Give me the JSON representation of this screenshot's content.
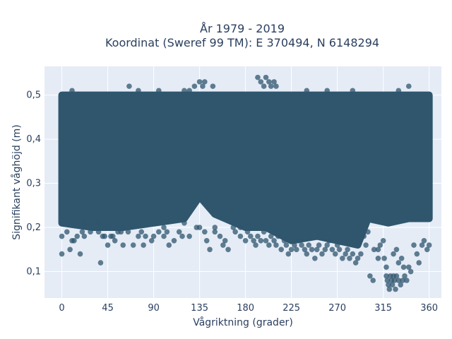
{
  "chart_data": {
    "type": "scatter",
    "title_line1": "År 1979 - 2019",
    "title_line2": "Koordinat (Sweref 99 TM): E 370494, N 6148294",
    "xlabel": "Vågriktning (grader)",
    "ylabel": "Signifikant våghöjd (m)",
    "xlim": [
      -17,
      372
    ],
    "ylim": [
      0.04,
      0.565
    ],
    "xticks": [
      0,
      45,
      90,
      135,
      180,
      225,
      270,
      315,
      360
    ],
    "xtick_labels": [
      "0",
      "45",
      "90",
      "135",
      "180",
      "225",
      "270",
      "315",
      "360"
    ],
    "yticks": [
      0.1,
      0.2,
      0.3,
      0.4,
      0.5
    ],
    "ytick_labels": [
      "0,1",
      "0,2",
      "0,3",
      "0,4",
      "0,5"
    ],
    "grid": true,
    "colors": {
      "marker": "#2f566d",
      "plot_bg": "#e5ecf6",
      "grid": "#ffffff",
      "text": "#2a3f5f"
    },
    "dense_band": {
      "x": [
        0,
        360
      ],
      "y": [
        0.22,
        0.5
      ],
      "note_lower_boundary_by_direction": [
        [
          0,
          0.21
        ],
        [
          30,
          0.2
        ],
        [
          60,
          0.2
        ],
        [
          120,
          0.22
        ],
        [
          135,
          0.27
        ],
        [
          150,
          0.23
        ],
        [
          180,
          0.2
        ],
        [
          200,
          0.2
        ],
        [
          225,
          0.17
        ],
        [
          250,
          0.18
        ],
        [
          270,
          0.17
        ],
        [
          290,
          0.16
        ],
        [
          300,
          0.22
        ],
        [
          320,
          0.21
        ],
        [
          340,
          0.22
        ],
        [
          360,
          0.22
        ]
      ]
    },
    "points": [
      [
        0,
        0.14
      ],
      [
        0,
        0.18
      ],
      [
        5,
        0.19
      ],
      [
        8,
        0.15
      ],
      [
        10,
        0.17
      ],
      [
        12,
        0.17
      ],
      [
        15,
        0.18
      ],
      [
        18,
        0.14
      ],
      [
        20,
        0.19
      ],
      [
        22,
        0.18
      ],
      [
        28,
        0.19
      ],
      [
        35,
        0.21
      ],
      [
        36,
        0.19
      ],
      [
        38,
        0.12
      ],
      [
        40,
        0.18
      ],
      [
        42,
        0.18
      ],
      [
        45,
        0.16
      ],
      [
        48,
        0.18
      ],
      [
        50,
        0.18
      ],
      [
        52,
        0.17
      ],
      [
        55,
        0.19
      ],
      [
        58,
        0.19
      ],
      [
        60,
        0.16
      ],
      [
        65,
        0.19
      ],
      [
        70,
        0.16
      ],
      [
        75,
        0.18
      ],
      [
        78,
        0.19
      ],
      [
        80,
        0.16
      ],
      [
        82,
        0.18
      ],
      [
        88,
        0.17
      ],
      [
        90,
        0.18
      ],
      [
        95,
        0.19
      ],
      [
        100,
        0.18
      ],
      [
        103,
        0.19
      ],
      [
        105,
        0.16
      ],
      [
        110,
        0.17
      ],
      [
        115,
        0.19
      ],
      [
        118,
        0.18
      ],
      [
        125,
        0.18
      ],
      [
        132,
        0.2
      ],
      [
        135,
        0.2
      ],
      [
        140,
        0.19
      ],
      [
        142,
        0.17
      ],
      [
        145,
        0.15
      ],
      [
        150,
        0.19
      ],
      [
        155,
        0.18
      ],
      [
        158,
        0.16
      ],
      [
        160,
        0.17
      ],
      [
        163,
        0.15
      ],
      [
        168,
        0.2
      ],
      [
        170,
        0.19
      ],
      [
        175,
        0.18
      ],
      [
        180,
        0.17
      ],
      [
        182,
        0.19
      ],
      [
        185,
        0.18
      ],
      [
        188,
        0.17
      ],
      [
        190,
        0.16
      ],
      [
        192,
        0.18
      ],
      [
        195,
        0.17
      ],
      [
        198,
        0.19
      ],
      [
        200,
        0.17
      ],
      [
        203,
        0.16
      ],
      [
        205,
        0.18
      ],
      [
        208,
        0.17
      ],
      [
        210,
        0.16
      ],
      [
        212,
        0.18
      ],
      [
        215,
        0.15
      ],
      [
        218,
        0.17
      ],
      [
        220,
        0.16
      ],
      [
        222,
        0.14
      ],
      [
        225,
        0.15
      ],
      [
        228,
        0.16
      ],
      [
        230,
        0.15
      ],
      [
        232,
        0.17
      ],
      [
        235,
        0.16
      ],
      [
        238,
        0.15
      ],
      [
        240,
        0.14
      ],
      [
        242,
        0.16
      ],
      [
        245,
        0.15
      ],
      [
        248,
        0.13
      ],
      [
        250,
        0.15
      ],
      [
        252,
        0.16
      ],
      [
        255,
        0.14
      ],
      [
        258,
        0.15
      ],
      [
        260,
        0.16
      ],
      [
        262,
        0.17
      ],
      [
        265,
        0.15
      ],
      [
        268,
        0.14
      ],
      [
        270,
        0.16
      ],
      [
        272,
        0.15
      ],
      [
        275,
        0.13
      ],
      [
        278,
        0.14
      ],
      [
        280,
        0.15
      ],
      [
        282,
        0.13
      ],
      [
        285,
        0.14
      ],
      [
        288,
        0.12
      ],
      [
        290,
        0.13
      ],
      [
        293,
        0.14
      ],
      [
        296,
        0.18
      ],
      [
        300,
        0.19
      ],
      [
        302,
        0.09
      ],
      [
        305,
        0.08
      ],
      [
        310,
        0.15
      ],
      [
        315,
        0.17
      ],
      [
        318,
        0.09
      ],
      [
        319,
        0.08
      ],
      [
        320,
        0.07
      ],
      [
        321,
        0.06
      ],
      [
        322,
        0.09
      ],
      [
        323,
        0.08
      ],
      [
        324,
        0.07
      ],
      [
        325,
        0.09
      ],
      [
        326,
        0.08
      ],
      [
        327,
        0.06
      ],
      [
        328,
        0.09
      ],
      [
        330,
        0.08
      ],
      [
        332,
        0.07
      ],
      [
        334,
        0.08
      ],
      [
        336,
        0.09
      ],
      [
        338,
        0.08
      ],
      [
        340,
        0.11
      ],
      [
        342,
        0.1
      ],
      [
        345,
        0.16
      ],
      [
        348,
        0.14
      ],
      [
        350,
        0.12
      ],
      [
        353,
        0.16
      ],
      [
        355,
        0.17
      ],
      [
        358,
        0.15
      ],
      [
        360,
        0.16
      ],
      [
        318,
        0.11
      ],
      [
        325,
        0.14
      ],
      [
        330,
        0.12
      ],
      [
        335,
        0.11
      ],
      [
        310,
        0.13
      ],
      [
        298,
        0.16
      ],
      [
        306,
        0.15
      ],
      [
        312,
        0.16
      ],
      [
        316,
        0.13
      ],
      [
        328,
        0.15
      ],
      [
        333,
        0.13
      ],
      [
        22,
        0.21
      ],
      [
        60,
        0.2
      ],
      [
        100,
        0.2
      ],
      [
        120,
        0.21
      ],
      [
        150,
        0.2
      ],
      [
        175,
        0.2
      ],
      [
        120,
        0.51
      ],
      [
        125,
        0.51
      ],
      [
        130,
        0.52
      ],
      [
        135,
        0.53
      ],
      [
        138,
        0.52
      ],
      [
        140,
        0.53
      ],
      [
        148,
        0.52
      ],
      [
        192,
        0.54
      ],
      [
        195,
        0.53
      ],
      [
        198,
        0.52
      ],
      [
        200,
        0.54
      ],
      [
        203,
        0.53
      ],
      [
        205,
        0.52
      ],
      [
        208,
        0.53
      ],
      [
        210,
        0.52
      ],
      [
        66,
        0.52
      ],
      [
        75,
        0.51
      ],
      [
        95,
        0.51
      ],
      [
        10,
        0.51
      ],
      [
        330,
        0.51
      ],
      [
        340,
        0.52
      ],
      [
        285,
        0.51
      ],
      [
        260,
        0.51
      ],
      [
        240,
        0.51
      ]
    ]
  }
}
